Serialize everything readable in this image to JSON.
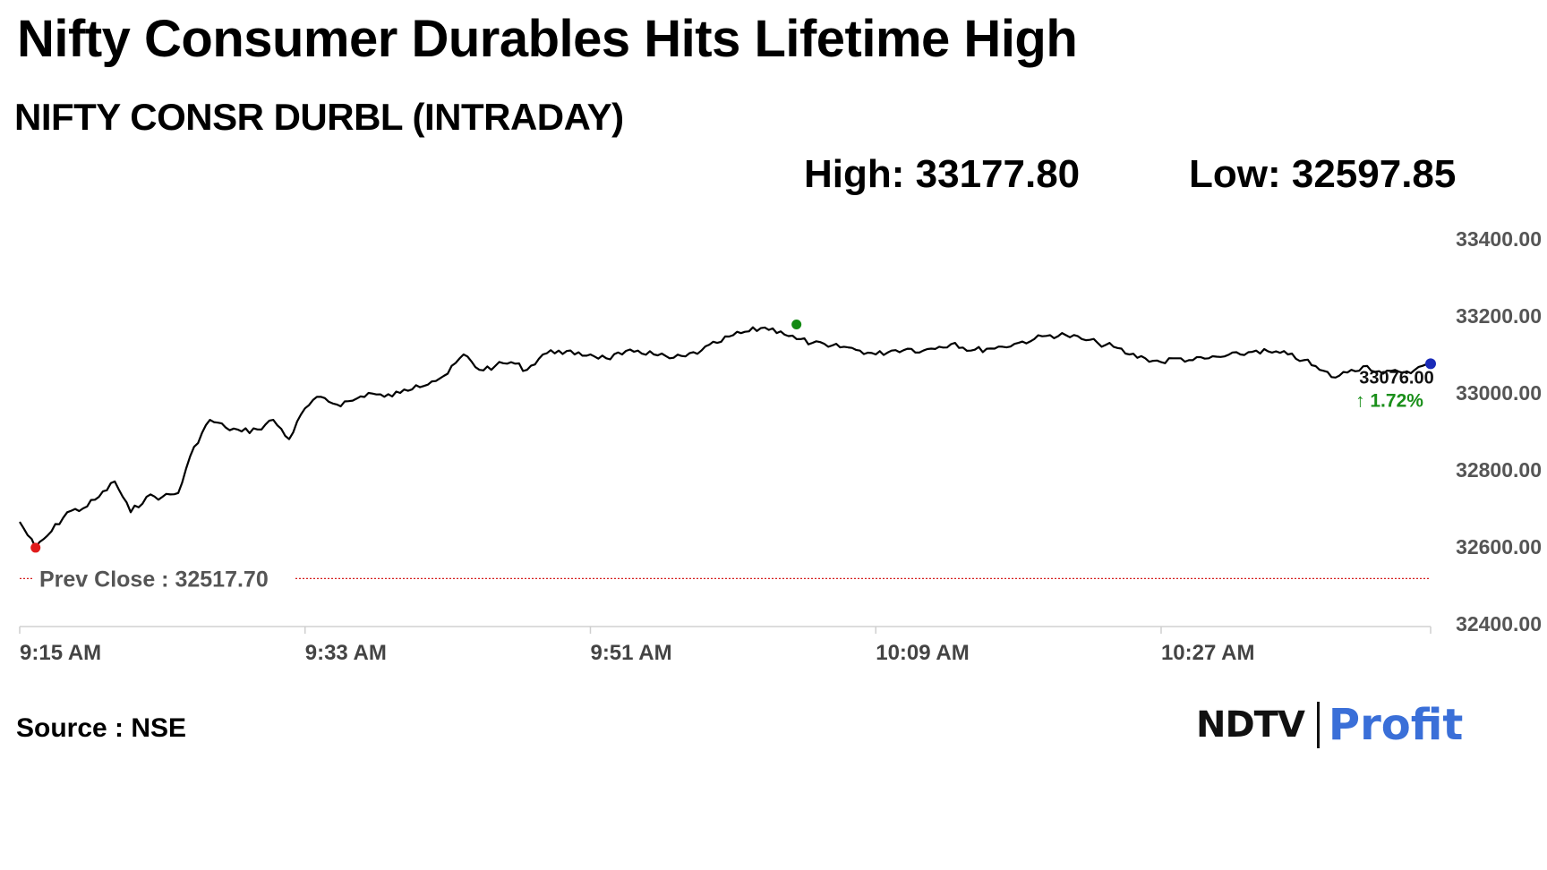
{
  "header": {
    "title": "Nifty Consumer Durables Hits Lifetime High",
    "subtitle": "NIFTY CONSR DURBL (INTRADAY)",
    "high_text": "High: 33177.80",
    "low_text": "Low: 32597.85"
  },
  "footer": {
    "source": "Source : NSE",
    "logo_left": "NDTV",
    "logo_right": "Profit"
  },
  "colors": {
    "line": "#000000",
    "high_marker": "#138a13",
    "low_marker": "#e01b1b",
    "last_marker": "#1a2bb8",
    "prev_close_line": "#d62020",
    "positive": "#1a8f1a"
  },
  "chart_data": {
    "type": "line",
    "title": "NIFTY CONSR DURBL (INTRADAY)",
    "xlabel": "",
    "ylabel": "",
    "ylim": [
      32400,
      33400
    ],
    "yticks": [
      33400,
      33200,
      33000,
      32800,
      32600,
      32400
    ],
    "ytick_labels": [
      "33400.00",
      "33200.00",
      "33000.00",
      "32800.00",
      "32600.00",
      "32400.00"
    ],
    "xlim": [
      "9:15 AM",
      "10:44 AM"
    ],
    "xticks": [
      "9:15 AM",
      "9:33 AM",
      "9:51 AM",
      "10:09 AM",
      "10:27 AM"
    ],
    "x": [
      "9:15 AM",
      "9:16 AM",
      "9:17 AM",
      "9:18 AM",
      "9:19 AM",
      "9:20 AM",
      "9:21 AM",
      "9:22 AM",
      "9:23 AM",
      "9:24 AM",
      "9:25 AM",
      "9:26 AM",
      "9:27 AM",
      "9:28 AM",
      "9:29 AM",
      "9:30 AM",
      "9:31 AM",
      "9:32 AM",
      "9:33 AM",
      "9:34 AM",
      "9:35 AM",
      "9:36 AM",
      "9:37 AM",
      "9:38 AM",
      "9:39 AM",
      "9:40 AM",
      "9:41 AM",
      "9:42 AM",
      "9:43 AM",
      "9:44 AM",
      "9:45 AM",
      "9:46 AM",
      "9:47 AM",
      "9:48 AM",
      "9:49 AM",
      "9:50 AM",
      "9:51 AM",
      "9:52 AM",
      "9:53 AM",
      "9:54 AM",
      "9:55 AM",
      "9:56 AM",
      "9:57 AM",
      "9:58 AM",
      "9:59 AM",
      "10:00 AM",
      "10:01 AM",
      "10:02 AM",
      "10:03 AM",
      "10:04 AM",
      "10:05 AM",
      "10:06 AM",
      "10:07 AM",
      "10:08 AM",
      "10:09 AM",
      "10:10 AM",
      "10:11 AM",
      "10:12 AM",
      "10:13 AM",
      "10:14 AM",
      "10:15 AM",
      "10:16 AM",
      "10:17 AM",
      "10:18 AM",
      "10:19 AM",
      "10:20 AM",
      "10:21 AM",
      "10:22 AM",
      "10:23 AM",
      "10:24 AM",
      "10:25 AM",
      "10:26 AM",
      "10:27 AM",
      "10:28 AM",
      "10:29 AM",
      "10:30 AM",
      "10:31 AM",
      "10:32 AM",
      "10:33 AM",
      "10:34 AM",
      "10:35 AM",
      "10:36 AM",
      "10:37 AM",
      "10:38 AM",
      "10:39 AM",
      "10:40 AM",
      "10:41 AM",
      "10:42 AM",
      "10:43 AM",
      "10:44 AM"
    ],
    "series": [
      {
        "values": [
          32665,
          32598,
          32640,
          32690,
          32700,
          32730,
          32770,
          32690,
          32730,
          32730,
          32740,
          32860,
          32930,
          32910,
          32900,
          32905,
          32930,
          32880,
          32960,
          32990,
          32970,
          32980,
          33000,
          32990,
          33000,
          33020,
          33030,
          33050,
          33100,
          33060,
          33070,
          33080,
          33060,
          33100,
          33110,
          33100,
          33100,
          33090,
          33100,
          33110,
          33100,
          33090,
          33095,
          33110,
          33130,
          33150,
          33160,
          33170,
          33160,
          33140,
          33130,
          33120,
          33120,
          33110,
          33100,
          33110,
          33115,
          33110,
          33120,
          33130,
          33110,
          33115,
          33120,
          33130,
          33140,
          33150,
          33150,
          33140,
          33130,
          33120,
          33100,
          33090,
          33080,
          33090,
          33085,
          33090,
          33095,
          33100,
          33110,
          33105,
          33100,
          33085,
          33060,
          33040,
          33060,
          33070,
          33050,
          33055,
          33060,
          33076
        ]
      }
    ],
    "high": {
      "label": "High",
      "time": "10:04 AM",
      "value": 33177.8
    },
    "low": {
      "label": "Low",
      "time": "9:16 AM",
      "value": 32597.85
    },
    "prev_close": {
      "label": "Prev Close : 32517.70",
      "value": 32517.7
    },
    "last": {
      "value_label": "33076.00",
      "change_label": "↑ 1.72%"
    },
    "grid": false,
    "legend": "none"
  }
}
